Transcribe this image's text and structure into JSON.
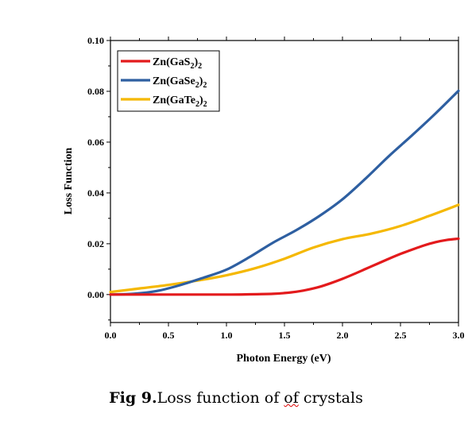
{
  "chart_data": {
    "type": "line",
    "xlabel": "Photon Energy (eV)",
    "ylabel": "Loss Function",
    "xlim": [
      0.0,
      3.0
    ],
    "ylim": [
      -0.011,
      0.1
    ],
    "x_ticks": [
      "0.0",
      "0.5",
      "1.0",
      "1.5",
      "2.0",
      "2.5",
      "3.0"
    ],
    "y_ticks": [
      "0.00",
      "0.02",
      "0.04",
      "0.06",
      "0.08",
      "0.10"
    ],
    "legend_position": "top-left",
    "series": [
      {
        "name": "Zn(GaS2)2",
        "legend_main": "Zn(GaS",
        "legend_sub1": "2",
        "legend_mid": ")",
        "legend_sub2": "2",
        "color": "#e31a1c",
        "x": [
          0.0,
          0.5,
          1.0,
          1.2,
          1.4,
          1.5,
          1.6,
          1.7,
          1.8,
          1.9,
          2.0,
          2.1,
          2.2,
          2.3,
          2.4,
          2.5,
          2.6,
          2.7,
          2.8,
          2.9,
          3.0
        ],
        "y": [
          0.0,
          0.0,
          0.0,
          0.0001,
          0.0003,
          0.0006,
          0.0011,
          0.0019,
          0.003,
          0.0045,
          0.0062,
          0.0081,
          0.0101,
          0.0121,
          0.0141,
          0.016,
          0.0177,
          0.0193,
          0.0206,
          0.0215,
          0.022
        ]
      },
      {
        "name": "Zn(GaSe2)2",
        "legend_main": "Zn(GaSe",
        "legend_sub1": "2",
        "legend_mid": ")",
        "legend_sub2": "2",
        "color": "#2e5fa1",
        "x": [
          0.0,
          0.2,
          0.4,
          0.6,
          0.8,
          1.0,
          1.2,
          1.4,
          1.6,
          1.8,
          2.0,
          2.2,
          2.4,
          2.6,
          2.8,
          3.0
        ],
        "y": [
          0.0,
          0.0003,
          0.0014,
          0.0037,
          0.0066,
          0.0098,
          0.0148,
          0.0204,
          0.0253,
          0.0309,
          0.0375,
          0.0457,
          0.0545,
          0.0627,
          0.0712,
          0.0802
        ]
      },
      {
        "name": "Zn(GaTe2)2",
        "legend_main": "Zn(GaTe",
        "legend_sub1": "2",
        "legend_mid": ")",
        "legend_sub2": "2",
        "color": "#f5b800",
        "x": [
          0.0,
          0.25,
          0.5,
          0.75,
          1.0,
          1.25,
          1.5,
          1.75,
          2.0,
          2.25,
          2.5,
          2.75,
          3.0
        ],
        "y": [
          0.001,
          0.0024,
          0.0038,
          0.0055,
          0.0076,
          0.0104,
          0.0141,
          0.0185,
          0.0218,
          0.024,
          0.027,
          0.031,
          0.0353
        ]
      }
    ]
  },
  "caption": {
    "prefix": "Fig 9.",
    "text_before": "Loss function of ",
    "squiggle": "of",
    "text_after": " crystals"
  }
}
